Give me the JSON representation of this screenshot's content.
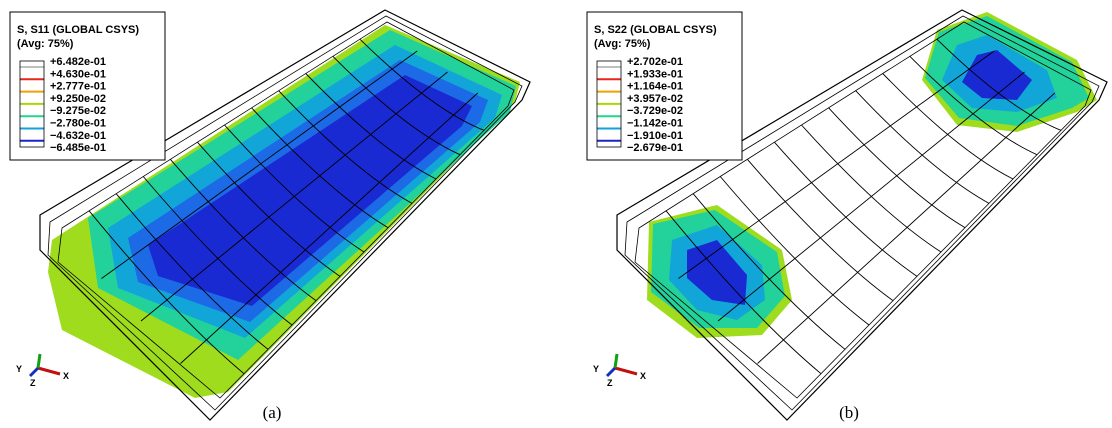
{
  "panels": [
    {
      "legend": {
        "title": "S, S11 (GLOBAL CSYS)",
        "subtitle": "(Avg: 75%)",
        "entries": [
          "+6.482e-01",
          "+4.630e-01",
          "+2.777e-01",
          "+9.250e-02",
          "−9.275e-02",
          "−2.780e-01",
          "−4.632e-01",
          "−6.485e-01"
        ]
      },
      "triad": {
        "y": "Y",
        "z": "Z",
        "x": "X"
      },
      "caption": "(a)"
    },
    {
      "legend": {
        "title": "S, S22 (GLOBAL CSYS)",
        "subtitle": "(Avg: 75%)",
        "entries": [
          "+2.702e-01",
          "+1.933e-01",
          "+1.164e-01",
          "+3.957e-02",
          "−3.729e-02",
          "−1.142e-01",
          "−1.910e-01",
          "−2.679e-01"
        ]
      },
      "triad": {
        "y": "Y",
        "z": "Z",
        "x": "X"
      },
      "caption": "(b)"
    }
  ]
}
